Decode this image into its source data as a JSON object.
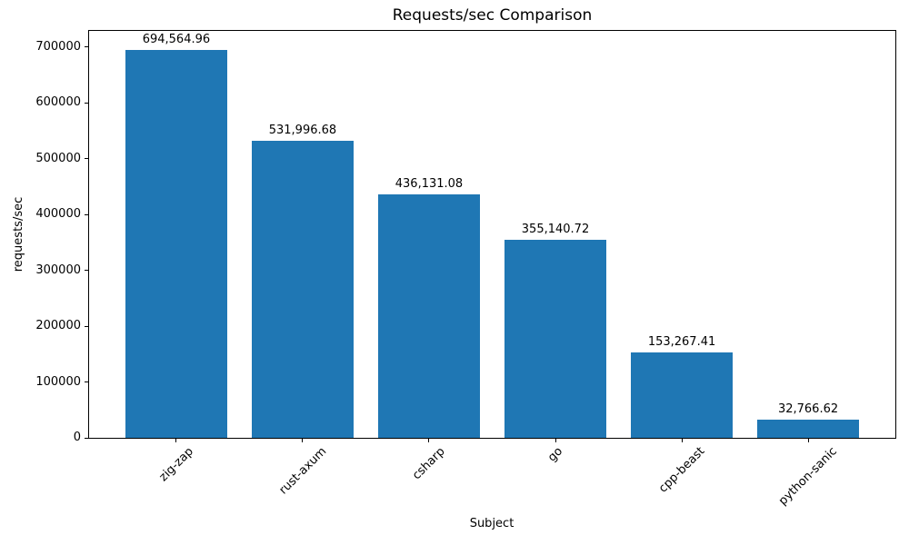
{
  "chart_data": {
    "type": "bar",
    "title": "Requests/sec Comparison",
    "xlabel": "Subject",
    "ylabel": "requests/sec",
    "categories": [
      "zig-zap",
      "rust-axum",
      "csharp",
      "go",
      "cpp-beast",
      "python-sanic"
    ],
    "values": [
      694564.96,
      531996.68,
      436131.08,
      355140.72,
      153267.41,
      32766.62
    ],
    "bar_value_labels": [
      "694,564.96",
      "531,996.68",
      "436,131.08",
      "355,140.72",
      "153,267.41",
      "32,766.62"
    ],
    "ytick_values": [
      0,
      100000,
      200000,
      300000,
      400000,
      500000,
      600000,
      700000
    ],
    "ytick_labels": [
      "0",
      "100000",
      "200000",
      "300000",
      "400000",
      "500000",
      "600000",
      "700000"
    ],
    "ylim": [
      0,
      729293
    ],
    "bar_width_ratio": 0.8,
    "x_edge_pad_units": 0.69,
    "grid": false,
    "legend_position": "none",
    "bar_color": "#1f77b4",
    "text_color": "#000000",
    "spine_color": "#000000",
    "background_color": "#ffffff"
  }
}
